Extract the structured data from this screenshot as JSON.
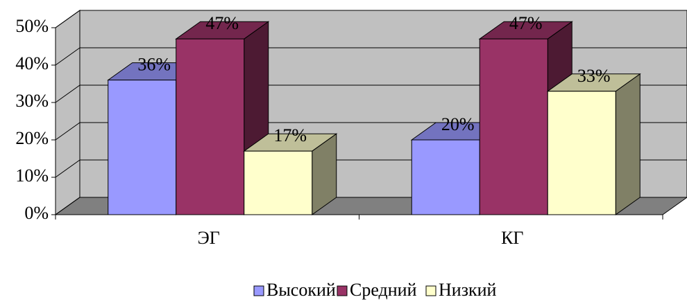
{
  "chart_data": {
    "type": "bar3d",
    "categories": [
      "ЭГ",
      "КГ"
    ],
    "series": [
      {
        "name": "Высокий",
        "color": "#9999ff",
        "values": [
          36,
          20
        ],
        "value_labels": [
          "36%",
          "20%"
        ]
      },
      {
        "name": "Средний",
        "color": "#993366",
        "values": [
          47,
          47
        ],
        "value_labels": [
          "47%",
          "47%"
        ]
      },
      {
        "name": "Низкий",
        "color": "#ffffcc",
        "values": [
          17,
          33
        ],
        "value_labels": [
          "17%",
          "33%"
        ]
      }
    ],
    "ylim": [
      0,
      50
    ],
    "yticks": [
      {
        "value": 0,
        "label": "0%"
      },
      {
        "value": 10,
        "label": "10%"
      },
      {
        "value": 20,
        "label": "20%"
      },
      {
        "value": 30,
        "label": "30%"
      },
      {
        "value": 40,
        "label": "40%"
      },
      {
        "value": 50,
        "label": "50%"
      }
    ],
    "grid": true,
    "legend": "bottom"
  }
}
